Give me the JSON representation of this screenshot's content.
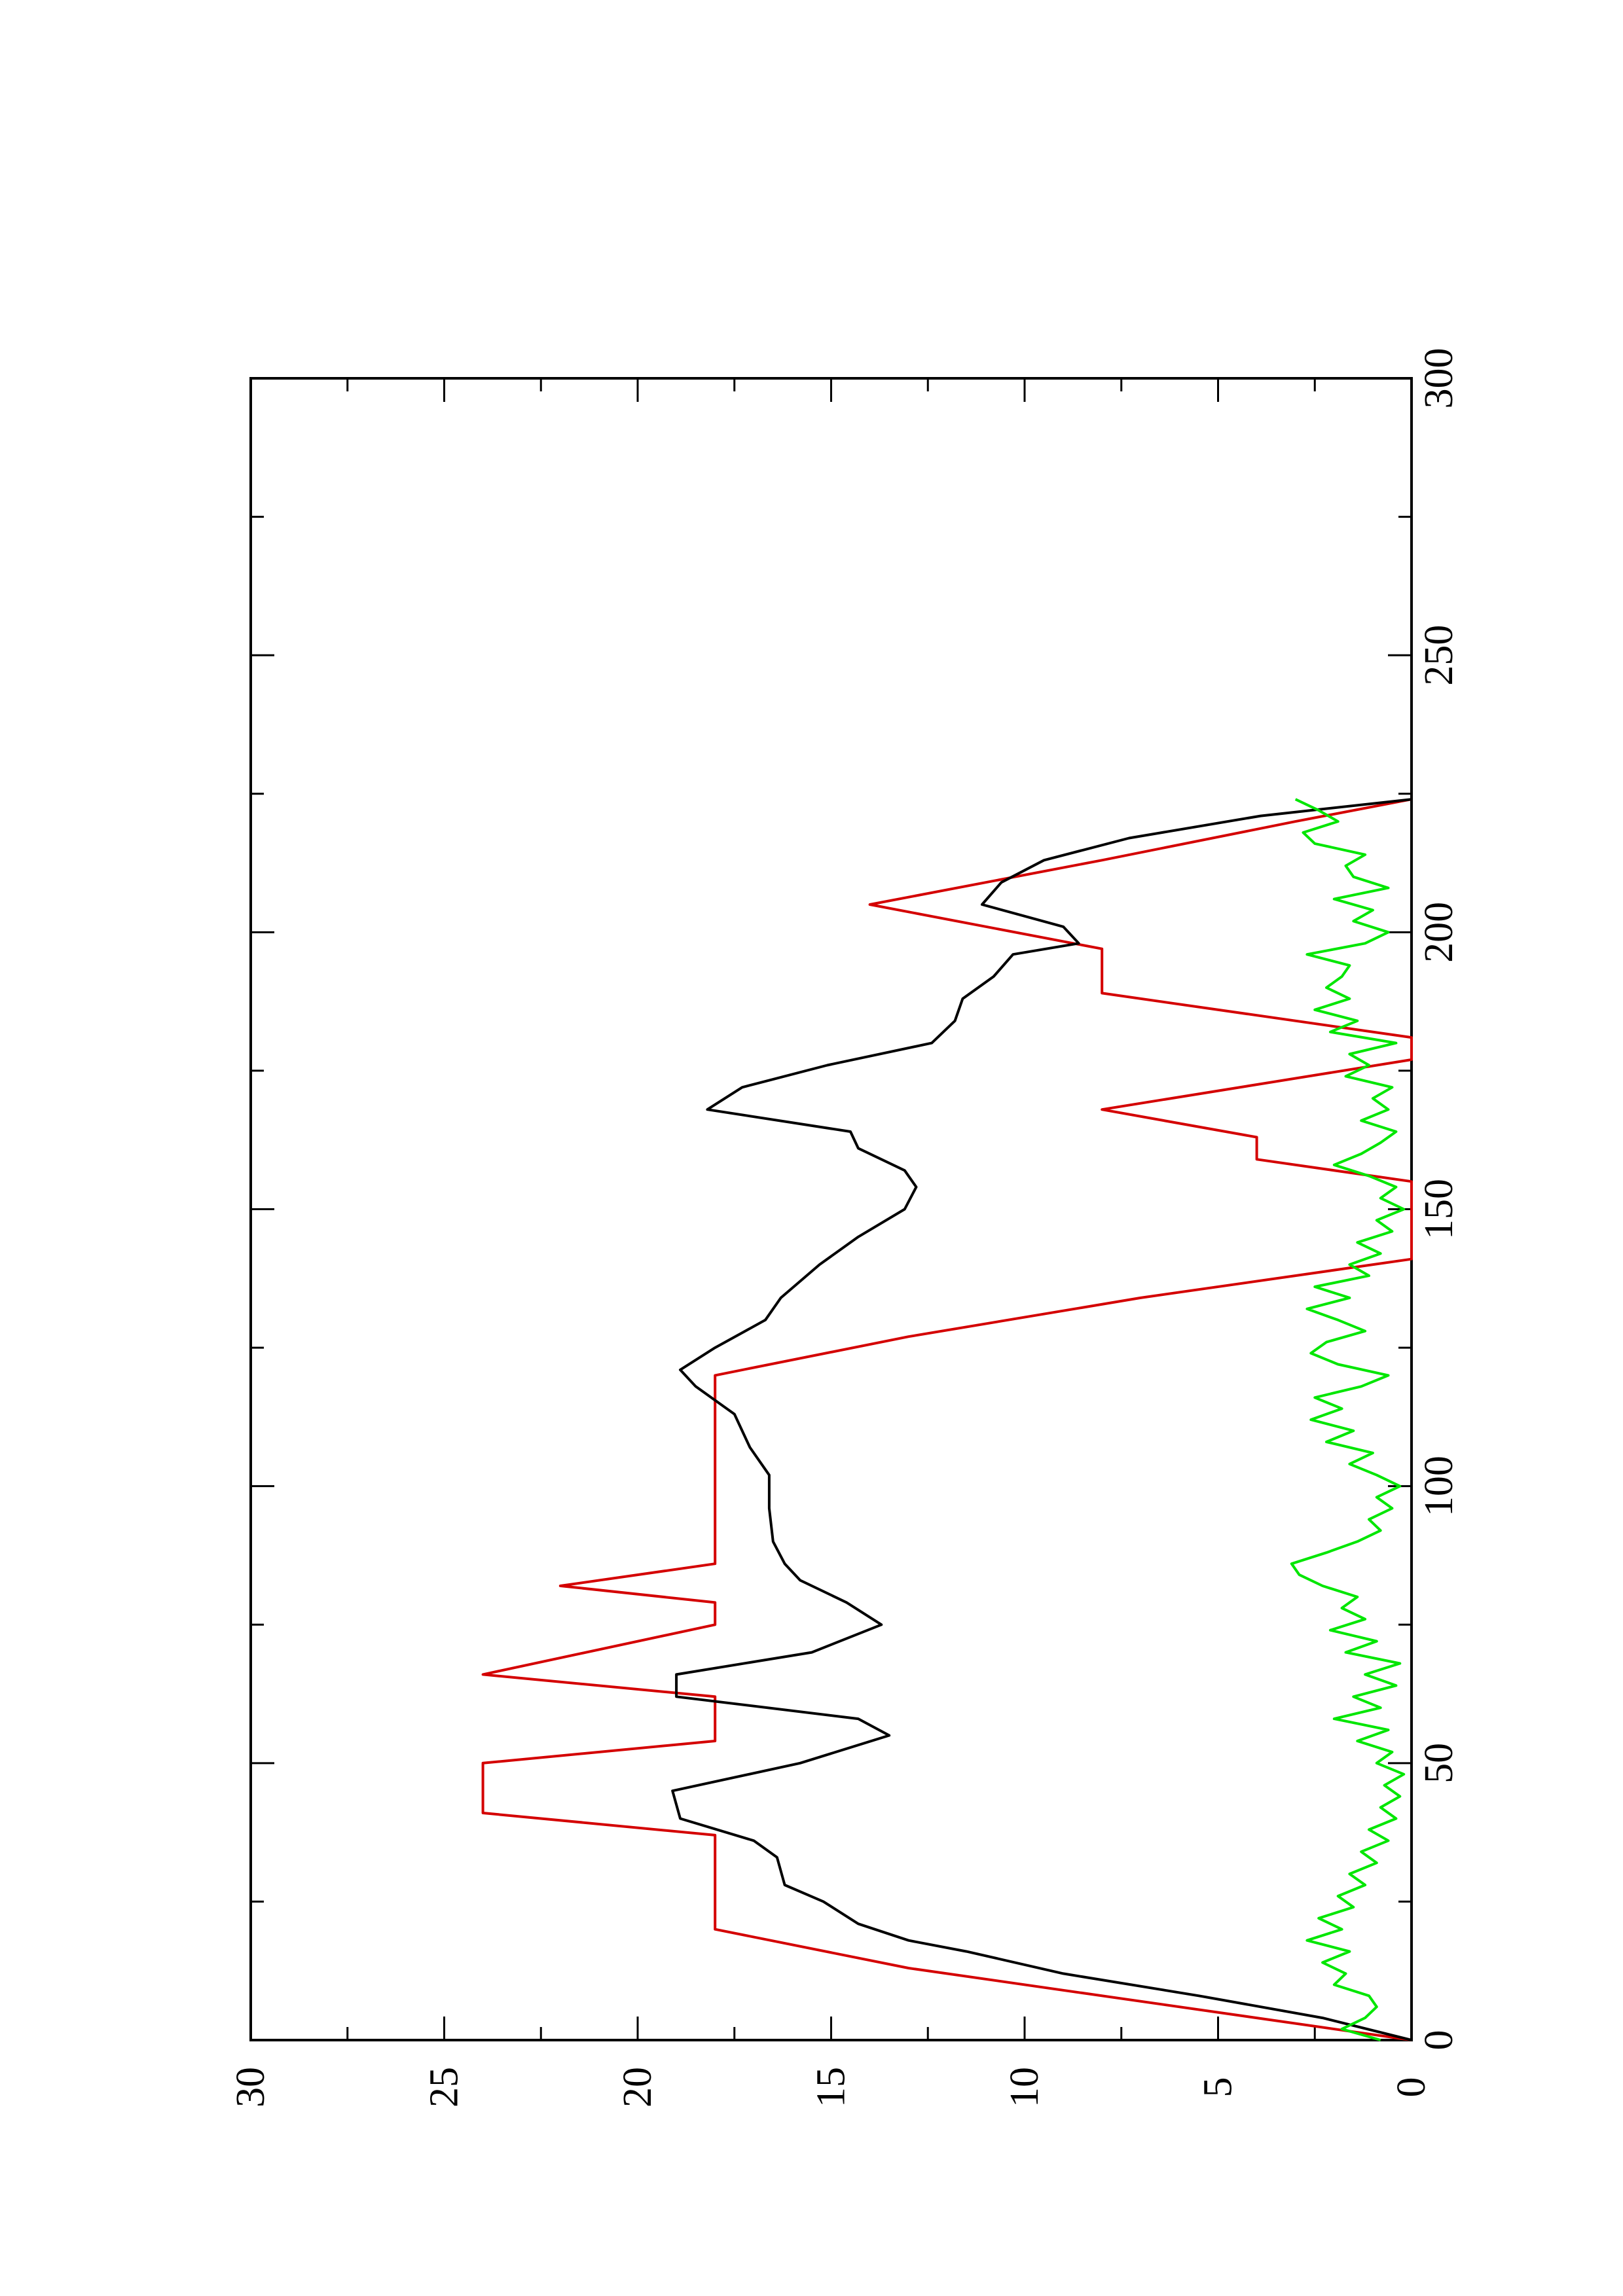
{
  "chart_data": {
    "type": "line",
    "orientation": "rotated 90° counter-clockwise",
    "title": "",
    "xlabel": "",
    "ylabel": "",
    "xlim": [
      0,
      300
    ],
    "ylim": [
      0,
      30
    ],
    "x_ticks": [
      0,
      50,
      100,
      150,
      200,
      250,
      300
    ],
    "y_ticks": [
      0,
      5,
      10,
      15,
      20,
      25,
      30
    ],
    "grid": false,
    "legend": "none",
    "series": [
      {
        "color": "#d40000",
        "x": [
          0,
          13,
          20,
          37,
          41,
          50,
          54,
          62,
          66,
          75,
          79,
          82,
          86,
          120,
          127,
          134,
          141,
          155,
          159,
          163,
          168,
          177,
          181,
          189,
          197,
          205,
          213,
          220,
          224
        ],
        "y": [
          0,
          13,
          18,
          18,
          24,
          24,
          18,
          18,
          24,
          18,
          18,
          22,
          18,
          18,
          13,
          7,
          0,
          0,
          4,
          4,
          8,
          0,
          0,
          8,
          8,
          14,
          8,
          3,
          0
        ]
      },
      {
        "color": "#000000",
        "x": [
          0,
          4,
          8,
          12,
          16,
          18,
          21,
          25,
          28,
          33,
          36,
          40,
          45,
          50,
          55,
          58,
          62,
          66,
          70,
          75,
          79,
          83,
          86,
          90,
          96,
          102,
          107,
          113,
          118,
          121,
          125,
          130,
          134,
          140,
          145,
          150,
          154,
          157,
          161,
          164,
          168,
          172,
          176,
          180,
          184,
          188,
          192,
          196,
          198,
          201,
          205,
          209,
          213,
          217,
          221,
          224
        ],
        "y": [
          0,
          2.3,
          5.5,
          9,
          11.5,
          13,
          14.3,
          15.2,
          16.2,
          16.4,
          17,
          18.9,
          19.1,
          15.8,
          13.5,
          14.3,
          19,
          19,
          15.5,
          13.7,
          14.6,
          15.8,
          16.2,
          16.5,
          16.6,
          16.6,
          17.1,
          17.5,
          18.5,
          18.9,
          18,
          16.7,
          16.3,
          15.3,
          14.3,
          13.1,
          12.8,
          13.1,
          14.3,
          14.5,
          18.2,
          17.3,
          15.1,
          12.4,
          11.8,
          11.6,
          10.8,
          10.3,
          8.6,
          9,
          11.1,
          10.6,
          9.5,
          7.3,
          3.9,
          0
        ]
      },
      {
        "color": "#00e600",
        "x": [
          0,
          2,
          4,
          6,
          8,
          10,
          12,
          14,
          16,
          18,
          20,
          22,
          24,
          26,
          28,
          30,
          32,
          34,
          36,
          38,
          40,
          42,
          44,
          46,
          48,
          50,
          52,
          54,
          56,
          58,
          60,
          62,
          64,
          66,
          68,
          70,
          72,
          74,
          76,
          78,
          80,
          82,
          84,
          86,
          88,
          90,
          92,
          94,
          96,
          98,
          100,
          102,
          104,
          106,
          108,
          110,
          112,
          114,
          116,
          118,
          120,
          122,
          124,
          126,
          128,
          130,
          132,
          134,
          136,
          138,
          140,
          142,
          144,
          146,
          148,
          150,
          152,
          154,
          156,
          158,
          160,
          162,
          164,
          166,
          168,
          170,
          172,
          174,
          176,
          178,
          180,
          182,
          184,
          186,
          188,
          190,
          192,
          194,
          196,
          198,
          200,
          202,
          204,
          206,
          208,
          210,
          212,
          214,
          216,
          218,
          220,
          222,
          224
        ],
        "y": [
          0.8,
          1.8,
          1.2,
          0.9,
          1.1,
          2,
          1.7,
          2.3,
          1.6,
          2.7,
          1.8,
          2.4,
          1.5,
          1.9,
          1.2,
          1.6,
          0.9,
          1.3,
          0.6,
          1.1,
          0.4,
          0.8,
          0.3,
          0.7,
          0.2,
          0.9,
          0.5,
          1.4,
          0.6,
          2,
          0.8,
          1.5,
          0.4,
          1.2,
          0.3,
          1.7,
          0.9,
          2.1,
          1.2,
          1.8,
          1.4,
          2.3,
          2.9,
          3.1,
          2.2,
          1.4,
          0.8,
          1.1,
          0.5,
          0.9,
          0.3,
          0.9,
          1.6,
          1,
          2.2,
          1.5,
          2.6,
          1.8,
          2.5,
          1.3,
          0.6,
          1.9,
          2.6,
          2.2,
          1.2,
          1.9,
          2.7,
          1.6,
          2.5,
          1.1,
          1.6,
          0.8,
          1.4,
          0.5,
          0.9,
          0.2,
          0.8,
          0.4,
          1.1,
          2,
          1.3,
          0.8,
          0.4,
          1.3,
          0.6,
          1,
          0.5,
          1.7,
          1.1,
          1.6,
          0.4,
          2.1,
          1.4,
          2.5,
          1.6,
          2.2,
          1.8,
          1.6,
          2.7,
          1.2,
          0.6,
          1.5,
          1,
          2,
          0.6,
          1.5,
          1.7,
          1.2,
          2.5,
          2.8,
          1.9,
          2.4,
          3
        ]
      }
    ]
  }
}
